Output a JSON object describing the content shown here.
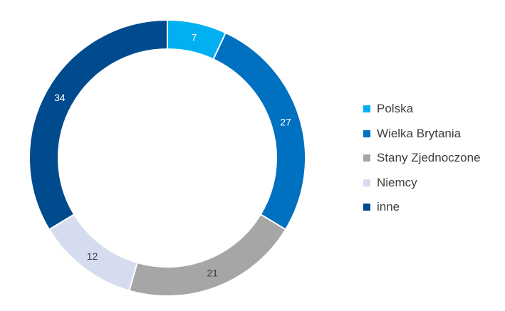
{
  "chart_data": {
    "type": "pie",
    "style": "donut",
    "categories": [
      "Polska",
      "Wielka Brytania",
      "Stany Zjednoczone",
      "Niemcy",
      "inne"
    ],
    "values": [
      7,
      27,
      21,
      12,
      34
    ],
    "colors": [
      "#00b0f0",
      "#0070c0",
      "#a6a6a6",
      "#d6dcef",
      "#004b8d"
    ],
    "data_labels": [
      "7",
      "27",
      "21",
      "12",
      "34"
    ],
    "legend_position": "right",
    "title": ""
  }
}
